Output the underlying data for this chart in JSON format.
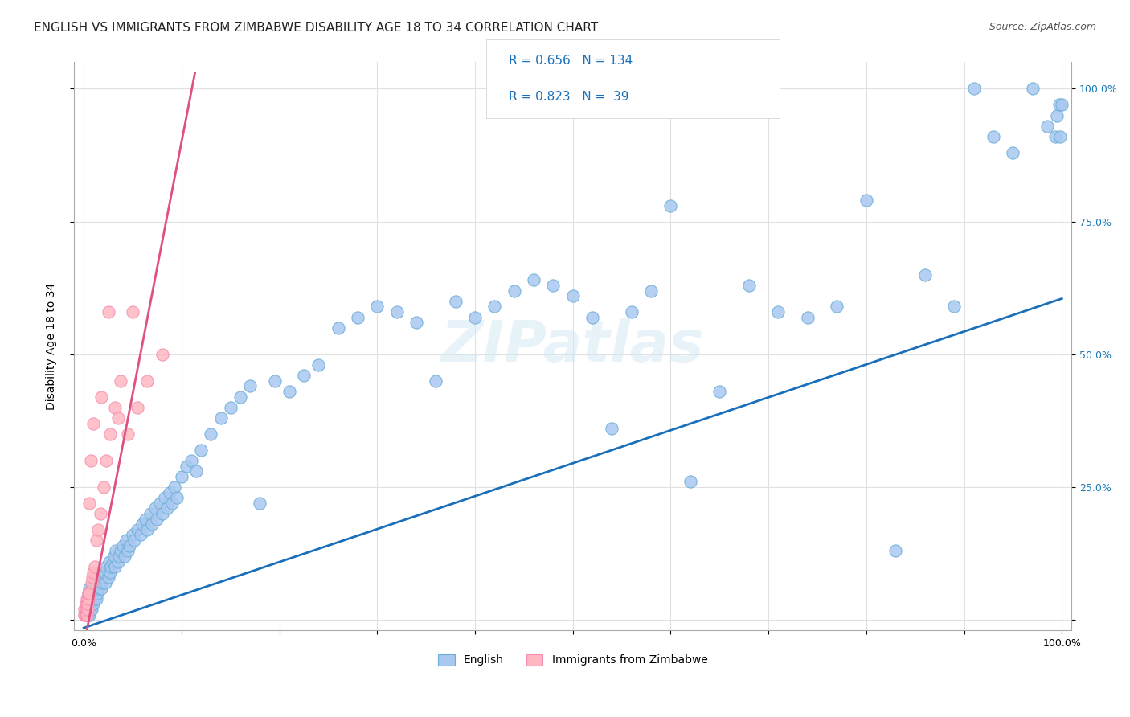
{
  "title": "ENGLISH VS IMMIGRANTS FROM ZIMBABWE DISABILITY AGE 18 TO 34 CORRELATION CHART",
  "source": "Source: ZipAtlas.com",
  "xlabel": "",
  "ylabel": "Disability Age 18 to 34",
  "x_ticks": [
    0.0,
    0.1,
    0.2,
    0.3,
    0.4,
    0.5,
    0.6,
    0.7,
    0.8,
    0.9,
    1.0
  ],
  "x_tick_labels": [
    "0.0%",
    "",
    "",
    "",
    "",
    "",
    "",
    "",
    "",
    "",
    "100.0%"
  ],
  "y_ticks": [
    0.0,
    0.25,
    0.5,
    0.75,
    1.0
  ],
  "y_tick_labels": [
    "",
    "25.0%",
    "50.0%",
    "75.0%",
    "100.0%"
  ],
  "watermark": "ZIPatlas",
  "legend_R1": "0.656",
  "legend_N1": "134",
  "legend_R2": "0.823",
  "legend_N2": "39",
  "english_color": "#a8c8f0",
  "english_edge_color": "#6baed6",
  "zimbabwe_color": "#ffb6c1",
  "zimbabwe_edge_color": "#f48fb1",
  "english_line_color": "#1a6fba",
  "zimbabwe_line_color": "#e05080",
  "english_scatter_x": [
    0.002,
    0.003,
    0.003,
    0.004,
    0.004,
    0.004,
    0.005,
    0.005,
    0.005,
    0.005,
    0.006,
    0.006,
    0.006,
    0.006,
    0.006,
    0.007,
    0.007,
    0.007,
    0.007,
    0.008,
    0.008,
    0.008,
    0.009,
    0.009,
    0.01,
    0.01,
    0.01,
    0.011,
    0.011,
    0.012,
    0.012,
    0.013,
    0.013,
    0.014,
    0.014,
    0.015,
    0.015,
    0.016,
    0.017,
    0.018,
    0.018,
    0.019,
    0.02,
    0.021,
    0.022,
    0.023,
    0.025,
    0.026,
    0.027,
    0.028,
    0.03,
    0.031,
    0.032,
    0.033,
    0.035,
    0.036,
    0.038,
    0.04,
    0.042,
    0.043,
    0.045,
    0.047,
    0.05,
    0.052,
    0.055,
    0.058,
    0.06,
    0.063,
    0.065,
    0.068,
    0.07,
    0.073,
    0.075,
    0.078,
    0.08,
    0.083,
    0.085,
    0.088,
    0.09,
    0.093,
    0.095,
    0.1,
    0.105,
    0.11,
    0.115,
    0.12,
    0.13,
    0.14,
    0.15,
    0.16,
    0.17,
    0.18,
    0.195,
    0.21,
    0.225,
    0.24,
    0.26,
    0.28,
    0.3,
    0.32,
    0.34,
    0.36,
    0.38,
    0.4,
    0.42,
    0.44,
    0.46,
    0.48,
    0.5,
    0.52,
    0.54,
    0.56,
    0.58,
    0.6,
    0.62,
    0.65,
    0.68,
    0.71,
    0.74,
    0.77,
    0.8,
    0.83,
    0.86,
    0.89,
    0.91,
    0.93,
    0.95,
    0.97,
    0.985,
    0.993,
    0.995,
    0.997,
    0.998,
    1.0
  ],
  "english_scatter_y": [
    0.02,
    0.01,
    0.03,
    0.02,
    0.01,
    0.04,
    0.02,
    0.03,
    0.01,
    0.05,
    0.02,
    0.04,
    0.03,
    0.01,
    0.06,
    0.02,
    0.03,
    0.05,
    0.04,
    0.03,
    0.02,
    0.06,
    0.04,
    0.05,
    0.03,
    0.07,
    0.05,
    0.04,
    0.06,
    0.05,
    0.07,
    0.06,
    0.04,
    0.07,
    0.05,
    0.08,
    0.06,
    0.07,
    0.08,
    0.06,
    0.09,
    0.07,
    0.08,
    0.09,
    0.07,
    0.1,
    0.08,
    0.11,
    0.09,
    0.1,
    0.11,
    0.12,
    0.1,
    0.13,
    0.11,
    0.12,
    0.13,
    0.14,
    0.12,
    0.15,
    0.13,
    0.14,
    0.16,
    0.15,
    0.17,
    0.16,
    0.18,
    0.19,
    0.17,
    0.2,
    0.18,
    0.21,
    0.19,
    0.22,
    0.2,
    0.23,
    0.21,
    0.24,
    0.22,
    0.25,
    0.23,
    0.27,
    0.29,
    0.3,
    0.28,
    0.32,
    0.35,
    0.38,
    0.4,
    0.42,
    0.44,
    0.22,
    0.45,
    0.43,
    0.46,
    0.48,
    0.55,
    0.57,
    0.59,
    0.58,
    0.56,
    0.45,
    0.6,
    0.57,
    0.59,
    0.62,
    0.64,
    0.63,
    0.61,
    0.57,
    0.36,
    0.58,
    0.62,
    0.78,
    0.26,
    0.43,
    0.63,
    0.58,
    0.57,
    0.59,
    0.79,
    0.13,
    0.65,
    0.59,
    1.0,
    0.91,
    0.88,
    1.0,
    0.93,
    0.91,
    0.95,
    0.97,
    0.91,
    0.97
  ],
  "zimbabwe_scatter_x": [
    0.001,
    0.001,
    0.001,
    0.002,
    0.002,
    0.002,
    0.002,
    0.003,
    0.003,
    0.003,
    0.003,
    0.004,
    0.004,
    0.005,
    0.005,
    0.006,
    0.006,
    0.007,
    0.008,
    0.009,
    0.01,
    0.011,
    0.013,
    0.015,
    0.017,
    0.02,
    0.023,
    0.027,
    0.032,
    0.038,
    0.045,
    0.055,
    0.065,
    0.08,
    0.01,
    0.018,
    0.025,
    0.035,
    0.05
  ],
  "zimbabwe_scatter_y": [
    0.01,
    0.01,
    0.02,
    0.01,
    0.02,
    0.03,
    0.01,
    0.02,
    0.01,
    0.03,
    0.04,
    0.02,
    0.03,
    0.04,
    0.05,
    0.05,
    0.22,
    0.3,
    0.07,
    0.08,
    0.09,
    0.1,
    0.15,
    0.17,
    0.2,
    0.25,
    0.3,
    0.35,
    0.4,
    0.45,
    0.35,
    0.4,
    0.45,
    0.5,
    0.37,
    0.42,
    0.58,
    0.38,
    0.58
  ],
  "english_R": 0.656,
  "zimbabwe_R": 0.823,
  "english_intercept": -0.015,
  "english_slope": 0.62,
  "zimbabwe_intercept": -0.05,
  "zimbabwe_slope": 9.5,
  "background_color": "#ffffff",
  "grid_color": "#e0e0e0",
  "title_fontsize": 11,
  "axis_label_fontsize": 10,
  "tick_fontsize": 9,
  "legend_fontsize": 11
}
